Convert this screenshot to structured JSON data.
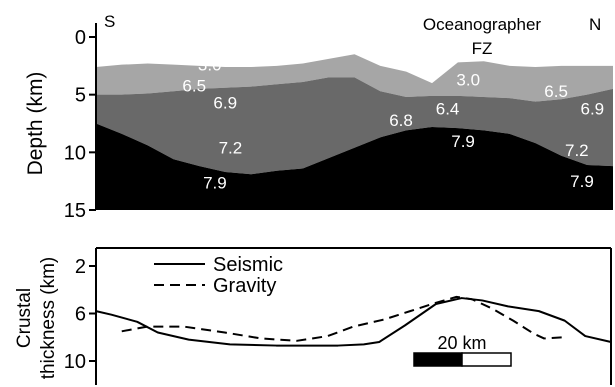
{
  "chart_data": [
    {
      "type": "area",
      "ylabel": "Depth (km)",
      "ylim": [
        15,
        0
      ],
      "yticks": [
        "0",
        "5",
        "10",
        "15"
      ],
      "grid": false,
      "annotations": {
        "south": "S",
        "north": "N",
        "fz_line1": "Oceanographer",
        "fz_line2": "FZ"
      },
      "x": [
        0,
        5,
        10,
        15,
        20,
        25,
        30,
        35,
        40,
        45,
        50,
        55,
        60,
        65,
        70,
        75,
        80,
        85,
        90,
        95,
        100
      ],
      "layers": [
        {
          "velocity_top": "3.0",
          "color": "#a6a6a6",
          "top": [
            2.6,
            2.4,
            2.3,
            2.4,
            2.5,
            2.6,
            2.6,
            2.5,
            2.3,
            1.9,
            1.5,
            2.5,
            3.0,
            4.0,
            2.2,
            2.1,
            2.5,
            2.6,
            2.5,
            2.5,
            2.5
          ]
        },
        {
          "velocity_top": "6.5",
          "color": "#696969",
          "top": [
            5.0,
            5.0,
            4.9,
            4.7,
            4.5,
            4.4,
            4.3,
            4.1,
            3.9,
            3.5,
            3.5,
            4.7,
            5.2,
            5.1,
            5.1,
            5.2,
            5.3,
            5.6,
            5.4,
            5.0,
            4.5
          ]
        },
        {
          "velocity_top": "7.2",
          "color": "#000000",
          "top": [
            7.5,
            8.4,
            9.4,
            10.6,
            11.2,
            11.7,
            11.9,
            11.6,
            11.4,
            10.5,
            9.6,
            8.7,
            8.1,
            7.8,
            7.9,
            8.1,
            8.4,
            9.2,
            10.3,
            11.1,
            11.2
          ],
          "bottom": 15
        }
      ],
      "labels": [
        {
          "text": "3.0",
          "x": 22,
          "y": 2.4
        },
        {
          "text": "6.5",
          "x": 19,
          "y": 4.2
        },
        {
          "text": "6.9",
          "x": 25,
          "y": 5.7
        },
        {
          "text": "7.2",
          "x": 26,
          "y": 9.6
        },
        {
          "text": "7.9",
          "x": 23,
          "y": 12.6
        },
        {
          "text": "3.0",
          "x": 72,
          "y": 3.7
        },
        {
          "text": "6.5",
          "x": 89,
          "y": 4.7
        },
        {
          "text": "6.9",
          "x": 96,
          "y": 6.2
        },
        {
          "text": "6.4",
          "x": 68,
          "y": 6.2
        },
        {
          "text": "6.8",
          "x": 59,
          "y": 7.2
        },
        {
          "text": "7.9",
          "x": 71,
          "y": 9.0
        },
        {
          "text": "7.2",
          "x": 93,
          "y": 9.8
        },
        {
          "text": "7.9",
          "x": 94,
          "y": 12.5
        }
      ]
    },
    {
      "type": "line",
      "ylabel_line1": "Crustal",
      "ylabel_line2": "thickness (km)",
      "ylim": [
        10,
        2
      ],
      "yticks": [
        "2",
        "6",
        "10"
      ],
      "legend": "top-left",
      "scale_bar": "20 km",
      "series": [
        {
          "name": "Seismic",
          "style": "solid",
          "x": [
            0,
            3,
            8,
            12,
            18,
            26,
            35,
            42,
            47,
            52,
            55,
            60,
            66,
            71,
            75,
            80,
            86,
            91,
            95,
            100
          ],
          "values": [
            5.8,
            6.1,
            6.7,
            7.6,
            8.2,
            8.6,
            8.7,
            8.7,
            8.7,
            8.6,
            8.4,
            7.0,
            5.2,
            4.7,
            4.9,
            5.4,
            5.8,
            6.6,
            7.9,
            8.4
          ]
        },
        {
          "name": "Gravity",
          "style": "dashed",
          "x": [
            5,
            10,
            17,
            25,
            32,
            39,
            45,
            50,
            56,
            61,
            66,
            70,
            73,
            77,
            81,
            85,
            87,
            91
          ],
          "values": [
            7.5,
            7.1,
            7.1,
            7.6,
            8.1,
            8.3,
            7.9,
            7.1,
            6.5,
            5.8,
            5.1,
            4.6,
            4.8,
            5.6,
            6.6,
            7.7,
            8.1,
            8.0
          ]
        }
      ]
    }
  ]
}
